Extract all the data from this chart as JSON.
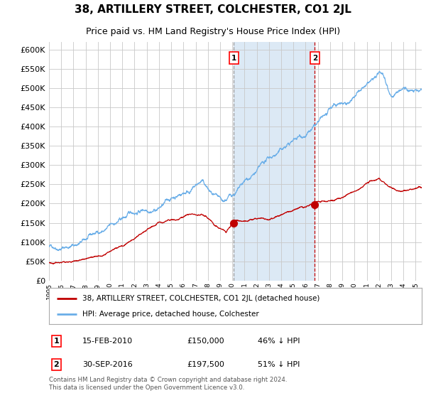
{
  "title": "38, ARTILLERY STREET, COLCHESTER, CO1 2JL",
  "subtitle": "Price paid vs. HM Land Registry's House Price Index (HPI)",
  "title_fontsize": 11,
  "subtitle_fontsize": 9,
  "ylim": [
    0,
    620000
  ],
  "yticks": [
    0,
    50000,
    100000,
    150000,
    200000,
    250000,
    300000,
    350000,
    400000,
    450000,
    500000,
    550000,
    600000
  ],
  "hpi_color": "#6aaee8",
  "price_color": "#c00000",
  "background_color": "#ffffff",
  "plot_bg_color": "#ffffff",
  "grid_color": "#c8c8c8",
  "shade_color": "#dce9f5",
  "transaction1_date": 2010.12,
  "transaction1_value": 150000,
  "transaction2_date": 2016.75,
  "transaction2_value": 197500,
  "legend_entries": [
    "38, ARTILLERY STREET, COLCHESTER, CO1 2JL (detached house)",
    "HPI: Average price, detached house, Colchester"
  ],
  "annotation1": [
    "1",
    "15-FEB-2010",
    "£150,000",
    "46% ↓ HPI"
  ],
  "annotation2": [
    "2",
    "30-SEP-2016",
    "£197,500",
    "51% ↓ HPI"
  ],
  "footer": "Contains HM Land Registry data © Crown copyright and database right 2024.\nThis data is licensed under the Open Government Licence v3.0."
}
